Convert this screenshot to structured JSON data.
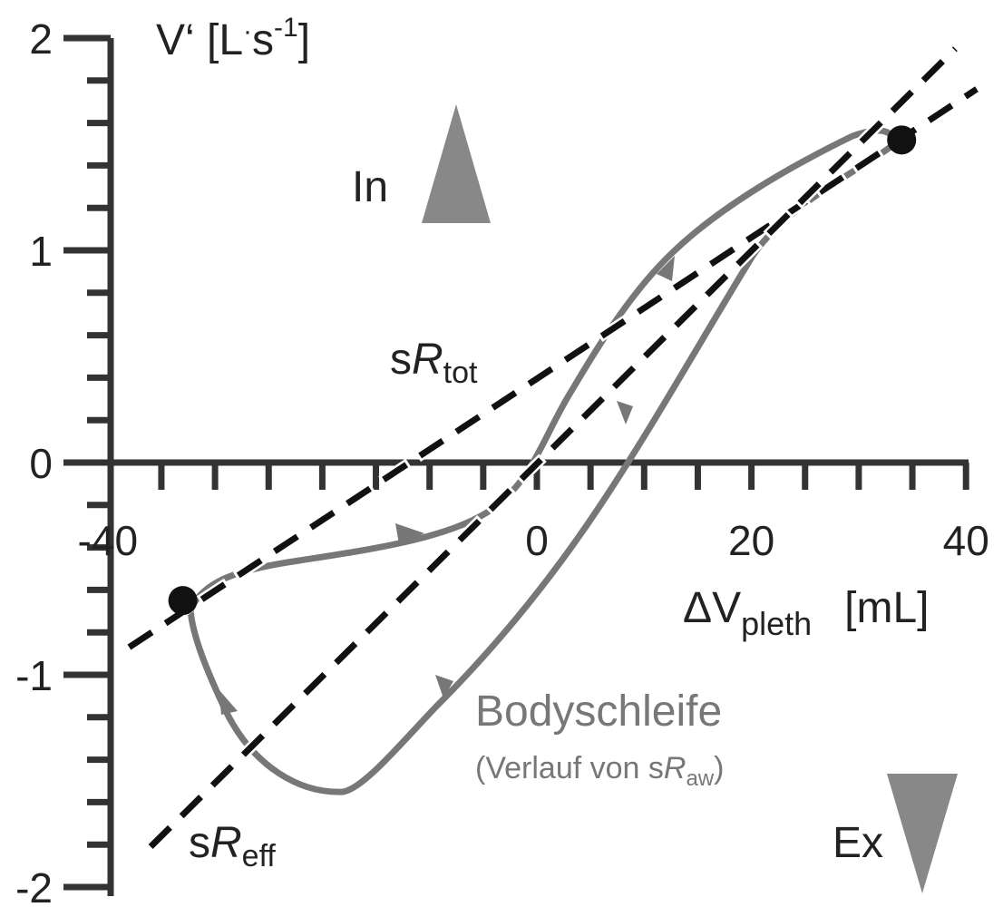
{
  "chart_data": {
    "type": "line",
    "x_axis": {
      "label": "ΔV",
      "label_sub": "pleth",
      "unit": "[mL]",
      "range": [
        -40,
        40
      ],
      "ticks": [
        -40,
        0,
        20,
        40
      ],
      "tick_labels": [
        "-40",
        "0",
        "20",
        "40"
      ]
    },
    "y_axis": {
      "label": "V‘ [L",
      "label_dot": "·",
      "label_s": "s",
      "label_sup": "-1",
      "label_end": "]",
      "range": [
        -2,
        2
      ],
      "ticks": [
        2,
        1,
        0,
        -1,
        -2
      ],
      "tick_labels": [
        "2",
        "1",
        "0",
        "-1",
        "-2"
      ]
    },
    "lines": [
      {
        "id": "sRtot",
        "label_prefix": "s",
        "label_italic": "R",
        "label_sub": "tot",
        "x": [
          -38,
          41
        ],
        "y": [
          -0.87,
          1.76
        ]
      },
      {
        "id": "sReff",
        "label_prefix": "s",
        "label_italic": "R",
        "label_sub": "eff",
        "x": [
          -36,
          39
        ],
        "y": [
          -1.81,
          1.95
        ]
      }
    ],
    "loop": {
      "name": "Bodyschleife",
      "subtitle_prefix": "(Verlauf von s",
      "subtitle_italic": "R",
      "subtitle_sub": "aw",
      "subtitle_suffix": ")",
      "color": "#777777",
      "endpoints": [
        {
          "x": -33,
          "y": -0.65
        },
        {
          "x": 34,
          "y": 1.52
        }
      ]
    },
    "markers": {
      "inspiration": "In",
      "expiration": "Ex"
    },
    "colors": {
      "axis": "#333333",
      "line": "#111111",
      "loop": "#777777",
      "arrow": "#777777"
    }
  }
}
